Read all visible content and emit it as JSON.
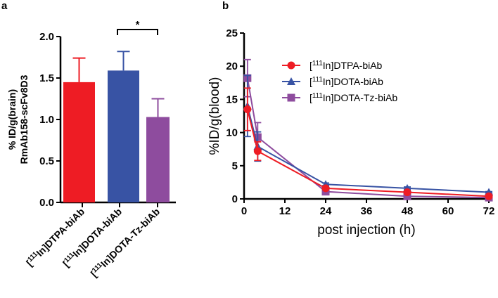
{
  "chart_data": [
    {
      "panel_label": "a",
      "type": "bar",
      "ylabel_line1": "% ID/g(brain)",
      "ylabel_line2": "RmAb158-scFv8D3",
      "ylim": [
        0,
        2.0
      ],
      "yticks": [
        "0.0",
        "0.5",
        "1.0",
        "1.5",
        "2.0"
      ],
      "categories": [
        {
          "pre": "[",
          "sup": "111",
          "text": "In]DTPA-biAb"
        },
        {
          "pre": "[",
          "sup": "111",
          "text": "In]DOTA-biAb"
        },
        {
          "pre": "[",
          "sup": "111",
          "text": "In]DOTA-Tz-biAb"
        }
      ],
      "values": [
        1.45,
        1.59,
        1.03
      ],
      "errors": [
        0.29,
        0.23,
        0.22
      ],
      "colors": [
        "#ee1c24",
        "#3853a4",
        "#8e4c9e"
      ],
      "significance": {
        "between": [
          1,
          2
        ],
        "label": "*"
      },
      "grid": false
    },
    {
      "panel_label": "b",
      "type": "line",
      "xlabel": "post injection (h)",
      "ylabel": "%ID/g(blood)",
      "xlim": [
        0,
        72
      ],
      "ylim": [
        0,
        25
      ],
      "xticks": [
        "0",
        "12",
        "24",
        "36",
        "48",
        "60",
        "72"
      ],
      "yticks": [
        "0",
        "5",
        "10",
        "15",
        "20",
        "25"
      ],
      "legend_position": "top-right",
      "grid": false,
      "series": [
        {
          "name_pre": "[",
          "name_sup": "111",
          "name": "In]DTPA-biAb",
          "color": "#ee1c24",
          "marker": "circle",
          "x": [
            1,
            4,
            24,
            48,
            72
          ],
          "y": [
            13.5,
            7.2,
            1.6,
            1.0,
            0.4
          ],
          "err": [
            3.2,
            1.4,
            0.2,
            0.2,
            0.1
          ]
        },
        {
          "name_pre": "[",
          "name_sup": "111",
          "name": "In]DOTA-biAb",
          "color": "#3853a4",
          "marker": "triangle",
          "x": [
            1,
            4,
            24,
            48,
            72
          ],
          "y": [
            14.0,
            7.9,
            2.2,
            1.6,
            1.0
          ],
          "err": [
            4.6,
            2.2,
            0.2,
            0.2,
            0.1
          ]
        },
        {
          "name_pre": "[",
          "name_sup": "111",
          "name": "In]DOTA-Tz-biAb",
          "color": "#8e4c9e",
          "marker": "square",
          "x": [
            1,
            4,
            24,
            48,
            72
          ],
          "y": [
            18.2,
            9.3,
            1.1,
            0.4,
            0.2
          ],
          "err": [
            2.8,
            2.2,
            0.2,
            0.1,
            0.1
          ]
        }
      ]
    }
  ]
}
